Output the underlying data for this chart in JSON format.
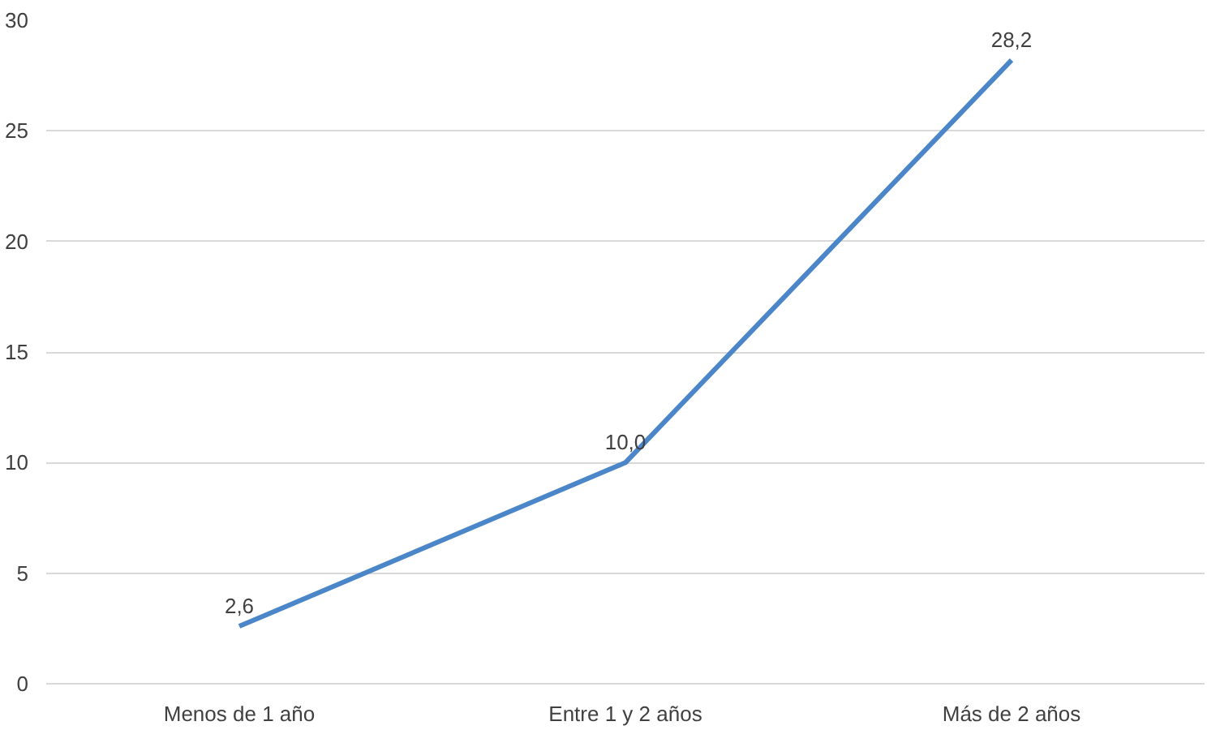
{
  "chart_data": {
    "type": "line",
    "categories": [
      "Menos de 1 año",
      "Entre 1 y 2 años",
      "Más de 2 años"
    ],
    "series": [
      {
        "color": "#4a86c8",
        "values": [
          2.6,
          10.0,
          28.2
        ],
        "value_labels": [
          "2,6",
          "10,0",
          "28,2"
        ]
      }
    ],
    "ylim": [
      0,
      30
    ],
    "yticks": [
      0,
      5,
      10,
      15,
      20,
      25,
      30
    ],
    "grid": "y",
    "marker": "none",
    "line_style": "solid"
  }
}
